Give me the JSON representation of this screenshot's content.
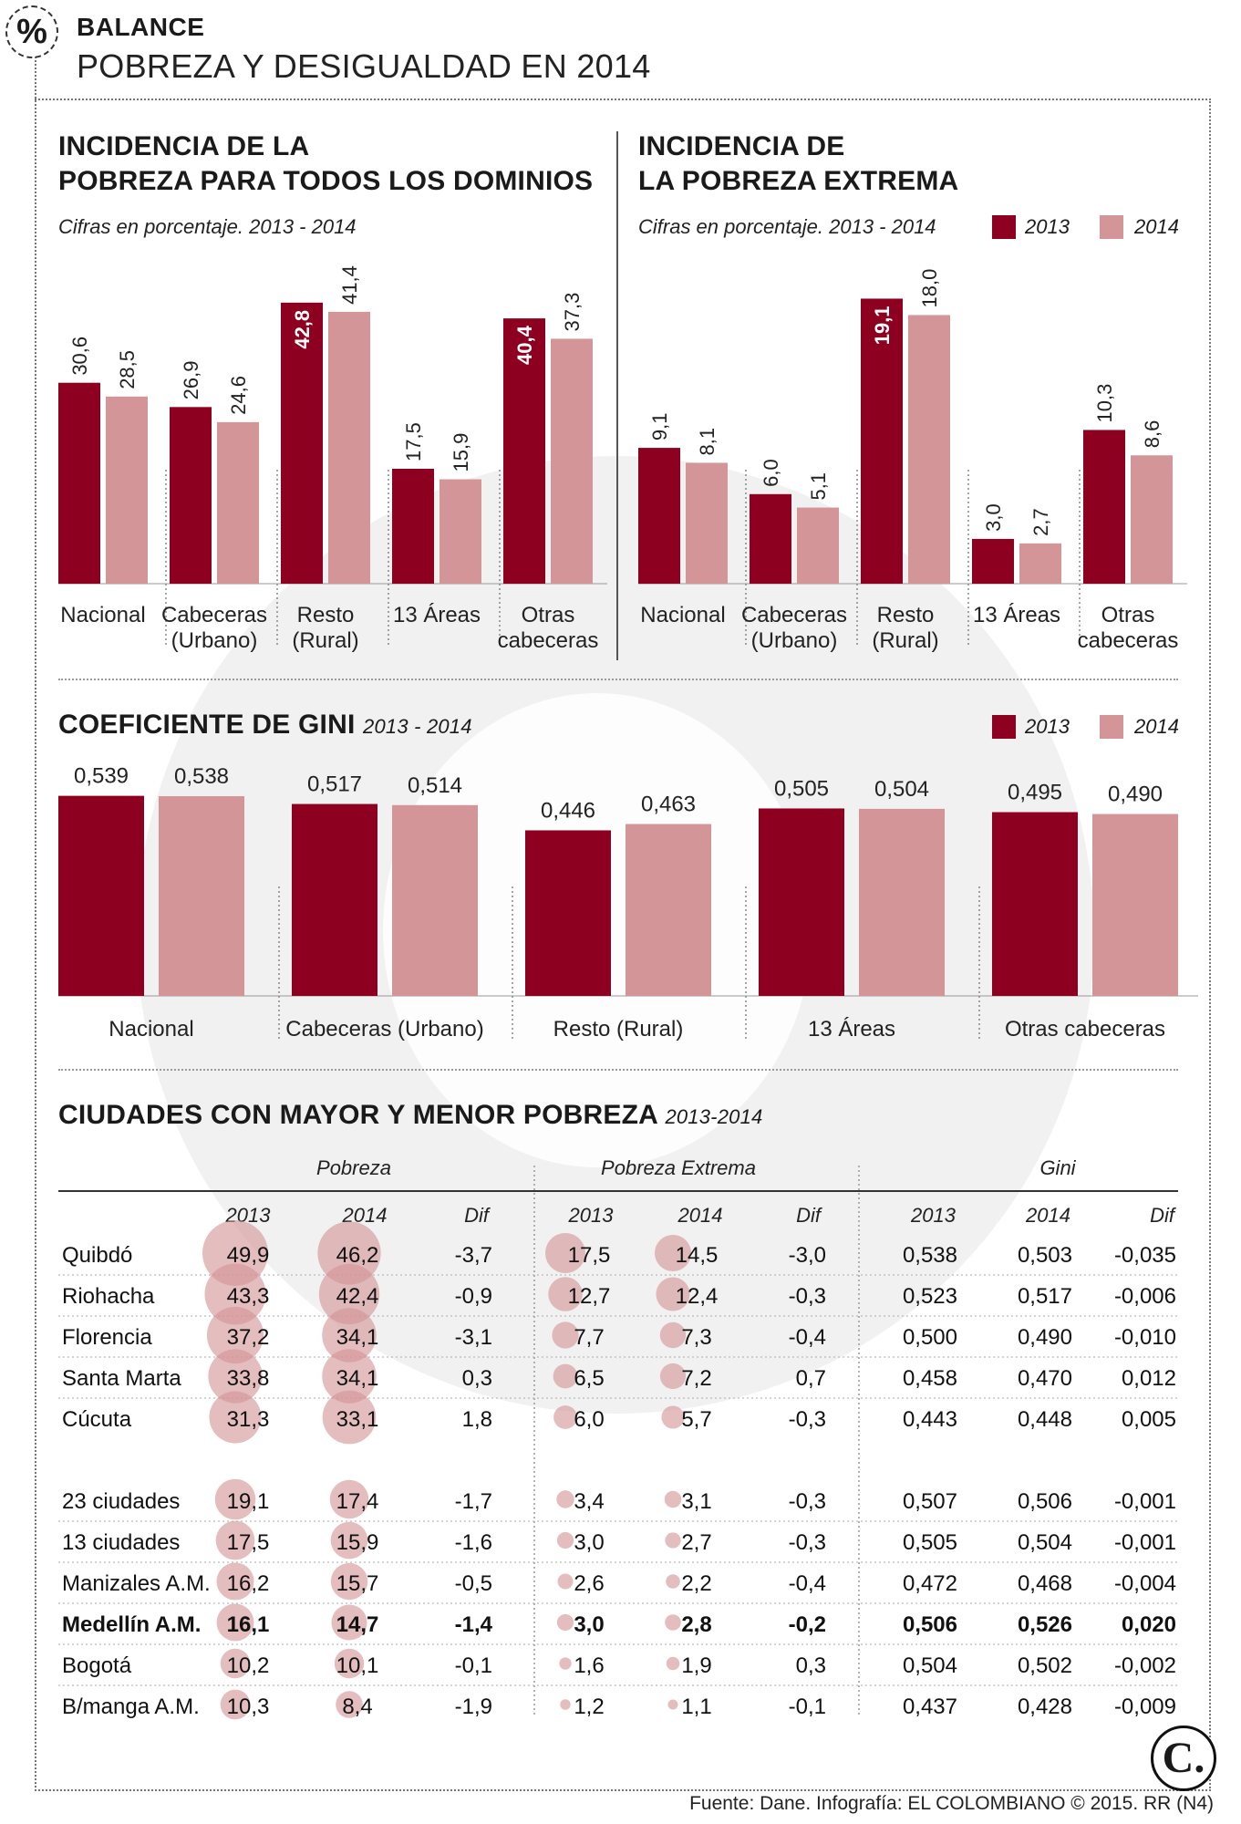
{
  "header": {
    "icon_symbol": "%",
    "kicker": "BALANCE",
    "title": "POBREZA Y DESIGUALDAD EN 2014"
  },
  "colors": {
    "y2013": "#8e0020",
    "y2014": "#d39597"
  },
  "legend": {
    "y2013": "2013",
    "y2014": "2014"
  },
  "panel_poverty": {
    "title_line1": "INCIDENCIA DE LA",
    "title_line2": "POBREZA PARA TODOS LOS DOMINIOS",
    "note": "Cifras en porcentaje. 2013 - 2014"
  },
  "panel_extreme": {
    "title_line1": "INCIDENCIA DE",
    "title_line2": "LA POBREZA EXTREMA",
    "note": "Cifras en porcentaje. 2013 - 2014"
  },
  "panel_gini": {
    "title": "COEFICIENTE DE GINI",
    "subtitle": "2013 - 2014"
  },
  "panel_cities": {
    "title": "CIUDADES CON MAYOR Y MENOR POBREZA",
    "subtitle": "2013-2014",
    "groups": [
      "Pobreza",
      "Pobreza Extrema",
      "Gini"
    ],
    "subheaders": [
      "2013",
      "2014",
      "Dif",
      "2013",
      "2014",
      "Dif",
      "2013",
      "2014",
      "Dif"
    ],
    "rows_top": [
      {
        "city": "Quibdó",
        "vals": [
          "49,9",
          "46,2",
          "-3,7",
          "17,5",
          "14,5",
          "-3,0",
          "0,538",
          "0,503",
          "-0,035"
        ],
        "bold": false
      },
      {
        "city": "Riohacha",
        "vals": [
          "43,3",
          "42,4",
          "-0,9",
          "12,7",
          "12,4",
          "-0,3",
          "0,523",
          "0,517",
          "-0,006"
        ],
        "bold": false
      },
      {
        "city": "Florencia",
        "vals": [
          "37,2",
          "34,1",
          "-3,1",
          "7,7",
          "7,3",
          "-0,4",
          "0,500",
          "0,490",
          "-0,010"
        ],
        "bold": false
      },
      {
        "city": "Santa Marta",
        "vals": [
          "33,8",
          "34,1",
          "0,3",
          "6,5",
          "7,2",
          "0,7",
          "0,458",
          "0,470",
          "0,012"
        ],
        "bold": false
      },
      {
        "city": "Cúcuta",
        "vals": [
          "31,3",
          "33,1",
          "1,8",
          "6,0",
          "5,7",
          "-0,3",
          "0,443",
          "0,448",
          "0,005"
        ],
        "bold": false
      }
    ],
    "rows_bottom": [
      {
        "city": "23 ciudades",
        "vals": [
          "19,1",
          "17,4",
          "-1,7",
          "3,4",
          "3,1",
          "-0,3",
          "0,507",
          "0,506",
          "-0,001"
        ],
        "bold": false
      },
      {
        "city": "13 ciudades",
        "vals": [
          "17,5",
          "15,9",
          "-1,6",
          "3,0",
          "2,7",
          "-0,3",
          "0,505",
          "0,504",
          "-0,001"
        ],
        "bold": false
      },
      {
        "city": "Manizales A.M.",
        "vals": [
          "16,2",
          "15,7",
          "-0,5",
          "2,6",
          "2,2",
          "-0,4",
          "0,472",
          "0,468",
          "-0,004"
        ],
        "bold": false
      },
      {
        "city": "Medellín A.M.",
        "vals": [
          "16,1",
          "14,7",
          "-1,4",
          "3,0",
          "2,8",
          "-0,2",
          "0,506",
          "0,526",
          "0,020"
        ],
        "bold": true
      },
      {
        "city": "Bogotá",
        "vals": [
          "10,2",
          "10,1",
          "-0,1",
          "1,6",
          "1,9",
          "0,3",
          "0,504",
          "0,502",
          "-0,002"
        ],
        "bold": false
      },
      {
        "city": "B/manga A.M.",
        "vals": [
          "10,3",
          "8,4",
          "-1,9",
          "1,2",
          "1,1",
          "-0,1",
          "0,437",
          "0,428",
          "-0,009"
        ],
        "bold": false
      }
    ]
  },
  "source": "Fuente: Dane. Infografía: EL COLOMBIANO © 2015. RR (N4)",
  "logo_text": "C.",
  "chart_data": [
    {
      "type": "bar",
      "title": "INCIDENCIA DE LA POBREZA PARA TODOS LOS DOMINIOS",
      "categories": [
        [
          "Nacional"
        ],
        [
          "Cabeceras",
          "(Urbano)"
        ],
        [
          "Resto",
          "(Rural)"
        ],
        [
          "13 Áreas"
        ],
        [
          "Otras",
          "cabeceras"
        ]
      ],
      "series": [
        {
          "name": "2013",
          "values": [
            30.6,
            26.9,
            42.8,
            17.5,
            40.4
          ],
          "labels": [
            "30,6",
            "26,9",
            "42,8",
            "17,5",
            "40,4"
          ]
        },
        {
          "name": "2014",
          "values": [
            28.5,
            24.6,
            41.4,
            15.9,
            37.3
          ],
          "labels": [
            "28,5",
            "24,6",
            "41,4",
            "15,9",
            "37,3"
          ]
        }
      ],
      "ylim": [
        0,
        50
      ]
    },
    {
      "type": "bar",
      "title": "INCIDENCIA DE LA POBREZA EXTREMA",
      "categories": [
        [
          "Nacional"
        ],
        [
          "Cabeceras",
          "(Urbano)"
        ],
        [
          "Resto",
          "(Rural)"
        ],
        [
          "13 Áreas"
        ],
        [
          "Otras",
          "cabeceras"
        ]
      ],
      "series": [
        {
          "name": "2013",
          "values": [
            9.1,
            6.0,
            19.1,
            3.0,
            10.3
          ],
          "labels": [
            "9,1",
            "6,0",
            "19,1",
            "3,0",
            "10,3"
          ]
        },
        {
          "name": "2014",
          "values": [
            8.1,
            5.1,
            18.0,
            2.7,
            8.6
          ],
          "labels": [
            "8,1",
            "5,1",
            "18,0",
            "2,7",
            "8,6"
          ]
        }
      ],
      "ylim": [
        0,
        22
      ]
    },
    {
      "type": "bar",
      "title": "COEFICIENTE DE GINI",
      "categories": [
        [
          "Nacional"
        ],
        [
          "Cabeceras (Urbano)"
        ],
        [
          "Resto (Rural)"
        ],
        [
          "13 Áreas"
        ],
        [
          "Otras cabeceras"
        ]
      ],
      "series": [
        {
          "name": "2013",
          "values": [
            0.539,
            0.517,
            0.446,
            0.505,
            0.495
          ],
          "labels": [
            "0,539",
            "0,517",
            "0,446",
            "0,505",
            "0,495"
          ]
        },
        {
          "name": "2014",
          "values": [
            0.538,
            0.514,
            0.463,
            0.504,
            0.49
          ],
          "labels": [
            "0,538",
            "0,514",
            "0,463",
            "0,504",
            "0,490"
          ]
        }
      ],
      "ylim": [
        0,
        0.57
      ]
    },
    {
      "type": "table",
      "title": "CIUDADES CON MAYOR Y MENOR POBREZA",
      "columns": [
        "Pobreza 2013",
        "Pobreza 2014",
        "Pobreza Dif",
        "Pobreza Extrema 2013",
        "Pobreza Extrema 2014",
        "Pobreza Extrema Dif",
        "Gini 2013",
        "Gini 2014",
        "Gini Dif"
      ],
      "rows": [
        "Quibdó",
        "Riohacha",
        "Florencia",
        "Santa Marta",
        "Cúcuta",
        "23 ciudades",
        "13 ciudades",
        "Manizales A.M.",
        "Medellín A.M.",
        "Bogotá",
        "B/manga A.M."
      ]
    }
  ]
}
